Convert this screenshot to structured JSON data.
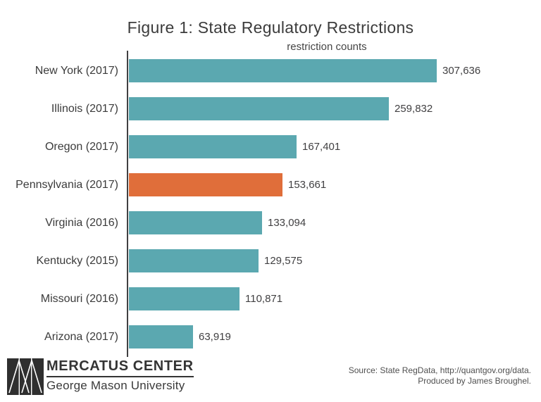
{
  "title": "Figure 1: State Regulatory Restrictions",
  "chart_data": {
    "type": "bar",
    "orientation": "horizontal",
    "title": "Figure 1: State Regulatory Restrictions",
    "xlabel": "restriction counts",
    "ylabel": "",
    "categories": [
      "New York (2017)",
      "Illinois (2017)",
      "Oregon (2017)",
      "Pennsylvania (2017)",
      "Virginia (2016)",
      "Kentucky (2015)",
      "Missouri (2016)",
      "Arizona (2017)"
    ],
    "values": [
      307636,
      259832,
      167401,
      153661,
      133094,
      129575,
      110871,
      63919
    ],
    "value_labels": [
      "307,636",
      "259,832",
      "167,401",
      "153,661",
      "133,094",
      "129,575",
      "110,871",
      "63,919"
    ],
    "xlim": [
      0,
      307636
    ],
    "grid": false,
    "legend": null,
    "bar_color": "#5BA8B0",
    "highlight_color": "#E06E3A",
    "highlight_index": 3,
    "highlighted_category": "Pennsylvania (2017)"
  },
  "footer": {
    "logo_primary": "MERCATUS CENTER",
    "logo_secondary": "George Mason University",
    "source_line1": "Source: State RegData, http://quantgov.org/data.",
    "source_line2": "Produced by James Broughel."
  }
}
